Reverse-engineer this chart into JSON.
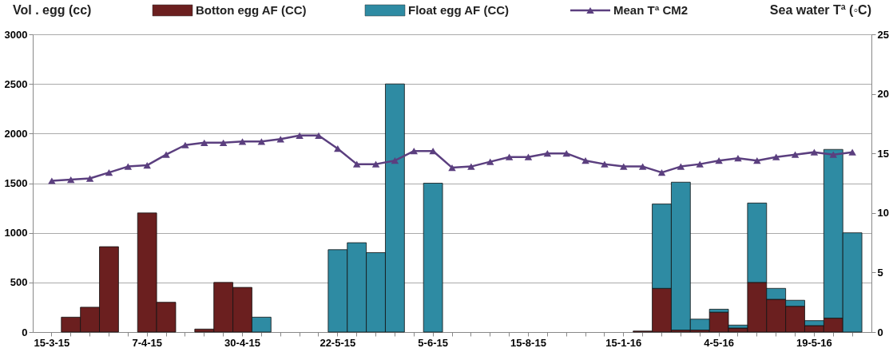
{
  "chart_data": {
    "type": "bar",
    "stacked": true,
    "legend": "top",
    "grid": "y",
    "ylabel": "Vol . egg (cc)",
    "y2label": "Sea water Tª (◦C)",
    "categories": [
      "15-3-15",
      null,
      null,
      null,
      null,
      "7-4-15",
      null,
      null,
      null,
      null,
      "30-4-15",
      null,
      null,
      null,
      null,
      "22-5-15",
      null,
      null,
      null,
      null,
      "5-6-15",
      null,
      null,
      null,
      null,
      "15-8-15",
      null,
      null,
      null,
      null,
      "15-1-16",
      null,
      null,
      null,
      null,
      "4-5-16",
      null,
      null,
      null,
      null,
      "19-5-16",
      null,
      null
    ],
    "ylim": [
      0,
      3000
    ],
    "yticks": [
      0,
      500,
      1000,
      1500,
      2000,
      2500,
      3000
    ],
    "y2lim": [
      0,
      25
    ],
    "y2ticks": [
      0,
      5,
      10,
      15,
      20,
      25
    ],
    "series": [
      {
        "name": "Botton egg AF (CC)",
        "color": "#6b1f1f",
        "values": [
          null,
          150,
          250,
          860,
          null,
          1200,
          300,
          null,
          30,
          500,
          450,
          null,
          null,
          null,
          null,
          null,
          null,
          null,
          null,
          null,
          null,
          null,
          null,
          null,
          null,
          null,
          null,
          null,
          null,
          null,
          null,
          10,
          440,
          20,
          20,
          200,
          40,
          500,
          330,
          260,
          65,
          140,
          null
        ]
      },
      {
        "name": "Float egg AF (CC)",
        "color": "#2e8ba3",
        "values": [
          null,
          null,
          null,
          null,
          null,
          null,
          null,
          null,
          null,
          null,
          null,
          150,
          null,
          null,
          null,
          830,
          900,
          800,
          2500,
          null,
          1500,
          null,
          null,
          null,
          null,
          null,
          null,
          null,
          null,
          null,
          null,
          null,
          850,
          1490,
          110,
          30,
          30,
          800,
          110,
          60,
          50,
          1700,
          1000
        ]
      },
      {
        "name": "Mean Tª CM2",
        "color": "#5b3f7f",
        "type": "line",
        "axis": "y2",
        "marker": "triangle",
        "line_style": "solid",
        "values": [
          12.7,
          12.8,
          12.9,
          13.4,
          13.9,
          14.0,
          14.9,
          15.7,
          15.9,
          15.9,
          16.0,
          16.0,
          16.2,
          16.5,
          16.5,
          15.4,
          14.1,
          14.1,
          14.4,
          15.2,
          15.2,
          13.8,
          13.9,
          14.3,
          14.7,
          14.7,
          15.0,
          15.0,
          14.4,
          14.1,
          13.9,
          13.9,
          13.4,
          13.9,
          14.1,
          14.4,
          14.6,
          14.4,
          14.7,
          14.9,
          15.1,
          14.9,
          15.1
        ]
      }
    ]
  }
}
